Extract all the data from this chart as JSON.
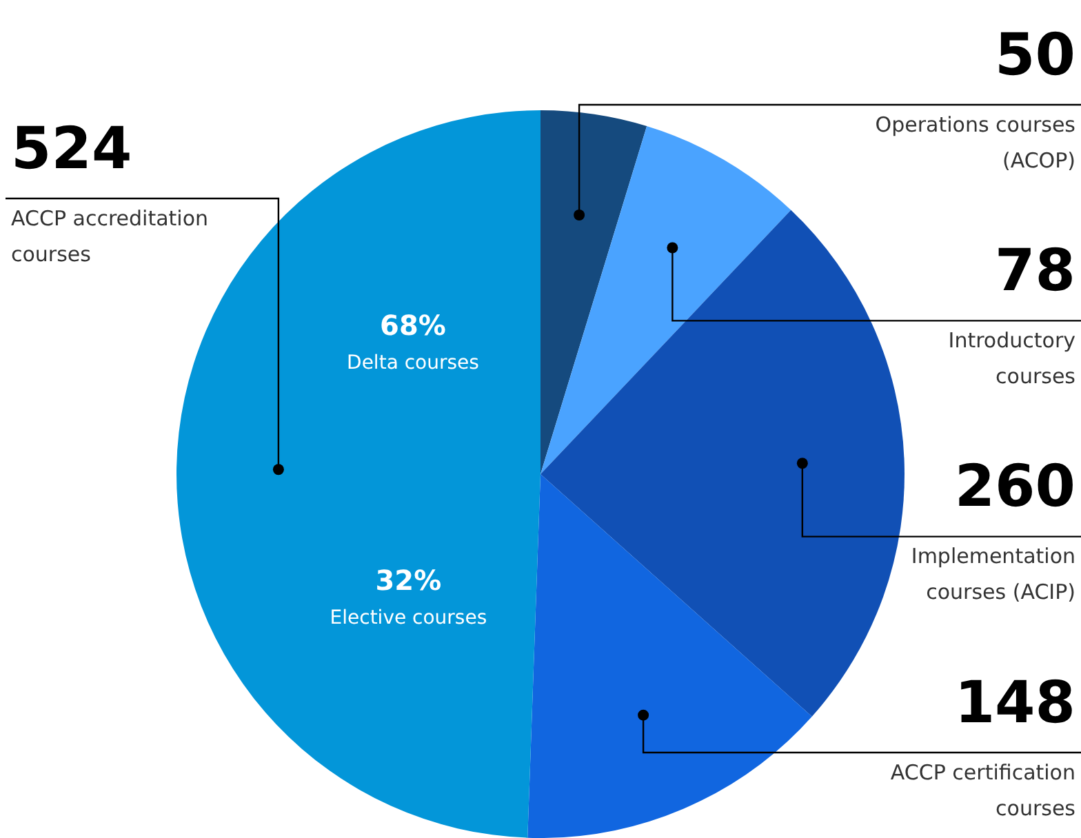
{
  "chart_data": {
    "type": "pie",
    "categories": [
      "Operations courses (ACOP)",
      "Introductory courses",
      "Implementation courses (ACIP)",
      "ACCP certification courses",
      "ACCP accreditation courses"
    ],
    "values": [
      50,
      78,
      260,
      148,
      524
    ],
    "colors": [
      "#154a7e",
      "#4aa3ff",
      "#1150b5",
      "#1166e0",
      "#0396d9"
    ],
    "data_labels": true,
    "legend": false,
    "annotations": [
      "68%",
      "Delta courses",
      "32%",
      "Elective courses"
    ]
  }
}
